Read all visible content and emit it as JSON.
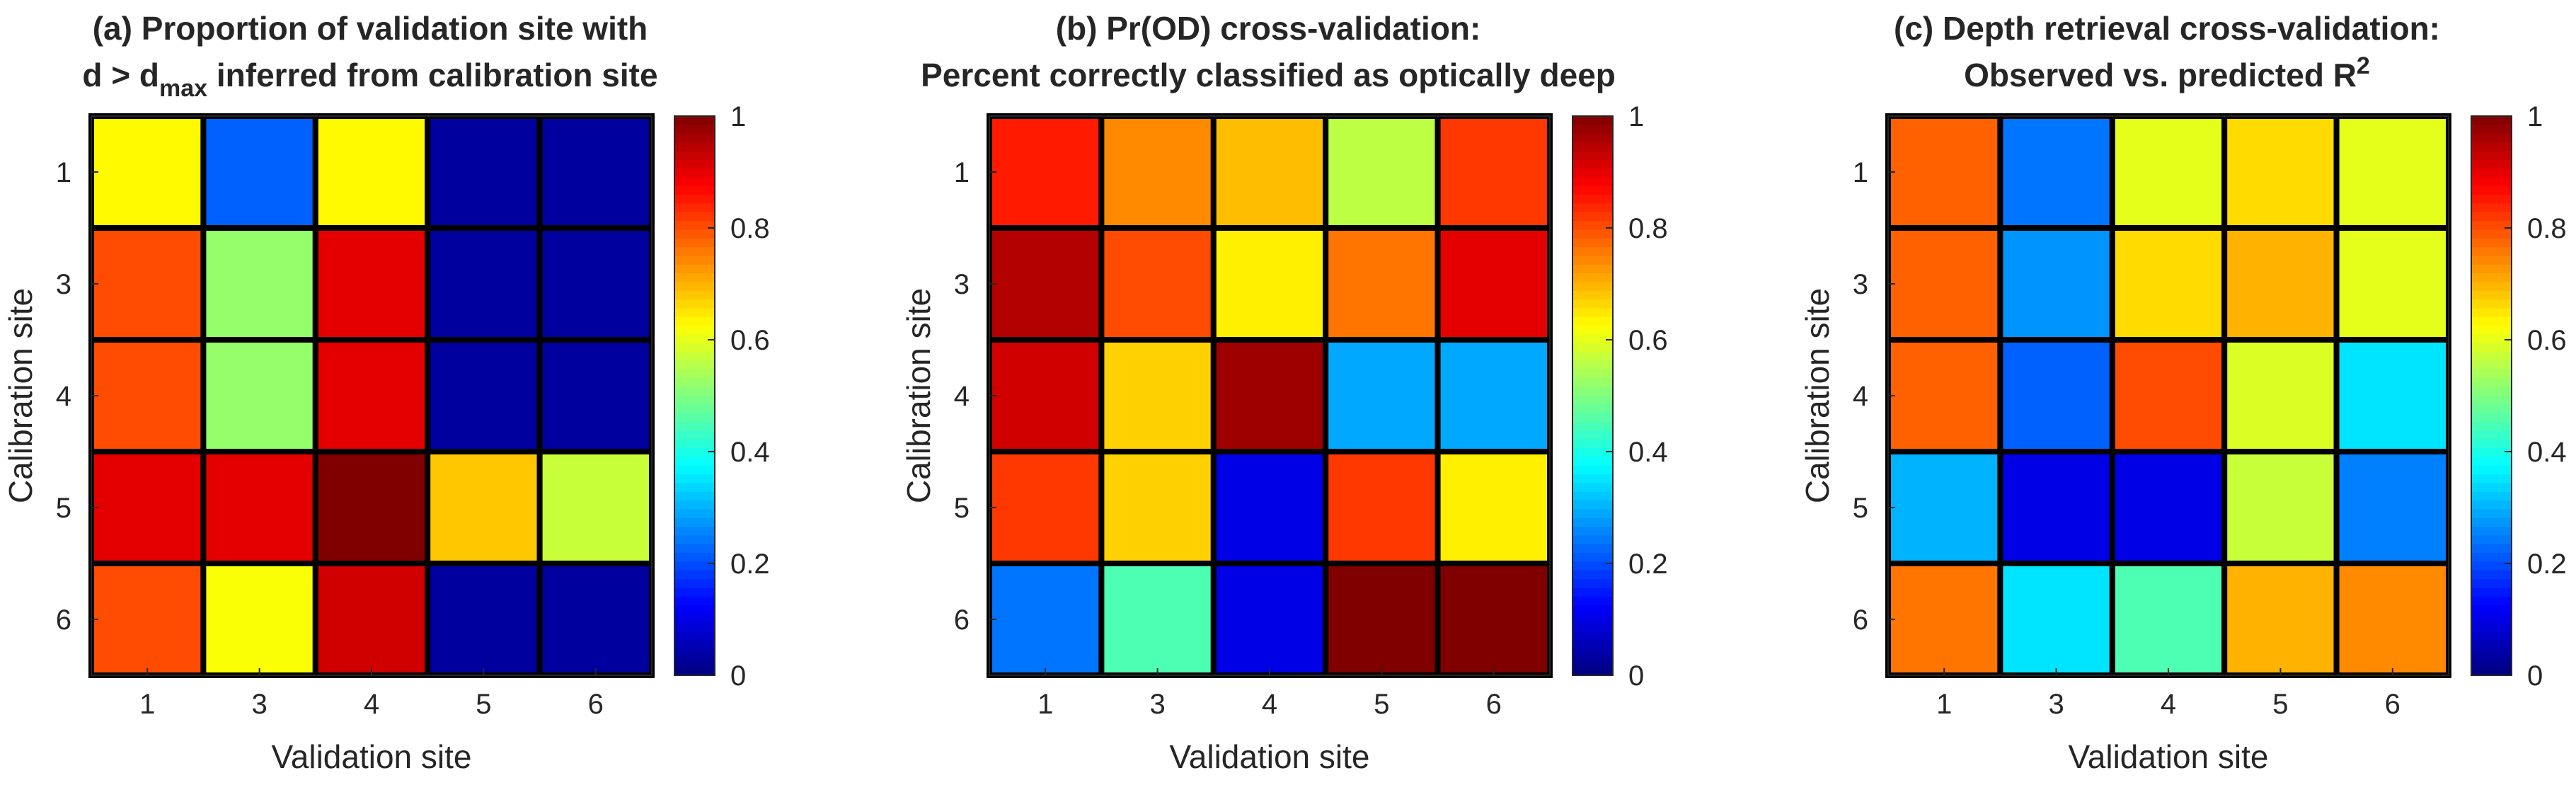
{
  "colormap": "jet",
  "chart_data": [
    {
      "type": "heatmap",
      "title_line1": "(a) Proportion of validation site with",
      "title_line2": {
        "prefix": "d > d",
        "subscript": "max",
        "suffix": " inferred from calibration site"
      },
      "xlabel": "Validation site",
      "ylabel": "Calibration site",
      "x_categories": [
        "1",
        "3",
        "4",
        "5",
        "6"
      ],
      "y_categories": [
        "1",
        "3",
        "4",
        "5",
        "6"
      ],
      "values": [
        [
          0.63,
          0.22,
          0.63,
          0.03,
          0.03
        ],
        [
          0.8,
          0.52,
          0.9,
          0.03,
          0.03
        ],
        [
          0.8,
          0.52,
          0.9,
          0.03,
          0.03
        ],
        [
          0.9,
          0.9,
          1.0,
          0.68,
          0.57
        ],
        [
          0.8,
          0.62,
          0.92,
          0.03,
          0.03
        ]
      ],
      "clim": [
        0,
        1
      ],
      "colorbar_ticks": [
        "0",
        "0.2",
        "0.4",
        "0.6",
        "0.8",
        "1"
      ]
    },
    {
      "type": "heatmap",
      "title_line1": "(b) Pr(OD) cross-validation:",
      "title_line2": {
        "prefix": "Percent correctly classified as optically deep",
        "subscript": "",
        "suffix": ""
      },
      "xlabel": "Validation site",
      "ylabel": "Calibration site",
      "x_categories": [
        "1",
        "3",
        "4",
        "5",
        "6"
      ],
      "y_categories": [
        "1",
        "3",
        "4",
        "5",
        "6"
      ],
      "values": [
        [
          0.85,
          0.74,
          0.69,
          0.56,
          0.82
        ],
        [
          0.95,
          0.8,
          0.64,
          0.76,
          0.9
        ],
        [
          0.92,
          0.67,
          0.97,
          0.29,
          0.29
        ],
        [
          0.82,
          0.67,
          0.1,
          0.82,
          0.64
        ],
        [
          0.24,
          0.45,
          0.1,
          1.0,
          1.0
        ]
      ],
      "clim": [
        0,
        1
      ],
      "colorbar_ticks": [
        "0",
        "0.2",
        "0.4",
        "0.6",
        "0.8",
        "1"
      ]
    },
    {
      "type": "heatmap",
      "title_line1": "(c) Depth retrieval cross-validation:",
      "title_line2": {
        "prefix": "Observed vs. predicted R",
        "superscript": "2",
        "suffix": ""
      },
      "xlabel": "Validation site",
      "ylabel": "Calibration site",
      "x_categories": [
        "1",
        "3",
        "4",
        "5",
        "6"
      ],
      "y_categories": [
        "1",
        "3",
        "4",
        "5",
        "6"
      ],
      "values": [
        [
          0.78,
          0.24,
          0.6,
          0.66,
          0.6
        ],
        [
          0.78,
          0.27,
          0.66,
          0.7,
          0.6
        ],
        [
          0.78,
          0.22,
          0.8,
          0.59,
          0.35
        ],
        [
          0.3,
          0.1,
          0.1,
          0.57,
          0.25
        ],
        [
          0.76,
          0.35,
          0.45,
          0.7,
          0.74
        ]
      ],
      "clim": [
        0,
        1
      ],
      "colorbar_ticks": [
        "0",
        "0.2",
        "0.4",
        "0.6",
        "0.8",
        "1"
      ]
    }
  ]
}
